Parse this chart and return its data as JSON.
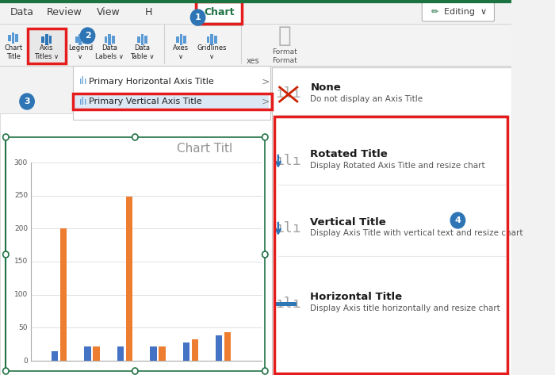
{
  "bg_color": "#f2f2f2",
  "white": "#ffffff",
  "red": "#e61c1c",
  "green_tab": "#217346",
  "blue_circle": "#2e75b6",
  "text_dark": "#1f1f1f",
  "text_gray": "#595959",
  "ribbon_bg": "#f3f3f3",
  "highlight_row": "#e8f0fb",
  "blue_icon": "#2e75b6",
  "orange_bar": "#ed7d31",
  "blue_bar": "#4472c4",
  "submenu_items": [
    [
      "None",
      "Do not display an Axis Title"
    ],
    [
      "Rotated Title",
      "Display Rotated Axis Title and resize chart"
    ],
    [
      "Vertical Title",
      "Display Axis Title with vertical text and resize chart"
    ],
    [
      "Horizontal Title",
      "Display Axis title horizontally and resize chart"
    ]
  ],
  "tab_labels": [
    "Data",
    "Review",
    "View",
    "H",
    "Chart"
  ],
  "tab_x": [
    30,
    90,
    145,
    200,
    295
  ],
  "chart_yticks": [
    0,
    50,
    100,
    150,
    200,
    250,
    300
  ],
  "bar_groups": [
    {
      "bx": 75,
      "ox": 87,
      "bh": 15,
      "oh": 200
    },
    {
      "bx": 120,
      "ox": 132,
      "bh": 22,
      "oh": 22
    },
    {
      "bx": 165,
      "ox": 177,
      "bh": 22,
      "oh": 248
    },
    {
      "bx": 210,
      "ox": 222,
      "bh": 22,
      "oh": 22
    },
    {
      "bx": 255,
      "ox": 267,
      "bh": 28,
      "oh": 33
    },
    {
      "bx": 300,
      "ox": 312,
      "bh": 38,
      "oh": 43
    }
  ]
}
